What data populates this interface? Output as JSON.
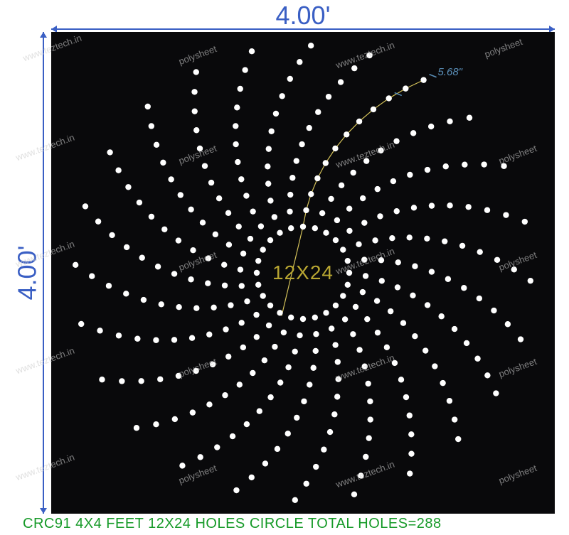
{
  "dimensions": {
    "width_label": "4.00'",
    "height_label": "4.00'",
    "arm_label": "5.68\""
  },
  "center_text": "12X24",
  "caption": "CRC91 4X4 FEET 12X24 HOLES CIRCLE TOTAL HOLES=288",
  "watermarks": [
    "www.teztech.in",
    "polysheet"
  ],
  "pattern": {
    "num_arms": 24,
    "holes_per_arm": 12,
    "hole_radius": 4.2,
    "hole_color": "#ffffff",
    "inner_radius": 65,
    "outer_radius": 320,
    "curve_sweep_deg": 32,
    "panel_bg": "#09090b",
    "highlight_color": "#d4c25a",
    "dim_color": "#3a5fc4",
    "arm_dim_color": "#5a8fb8",
    "center_text_color": "#b8a632",
    "caption_color": "#169a28"
  }
}
